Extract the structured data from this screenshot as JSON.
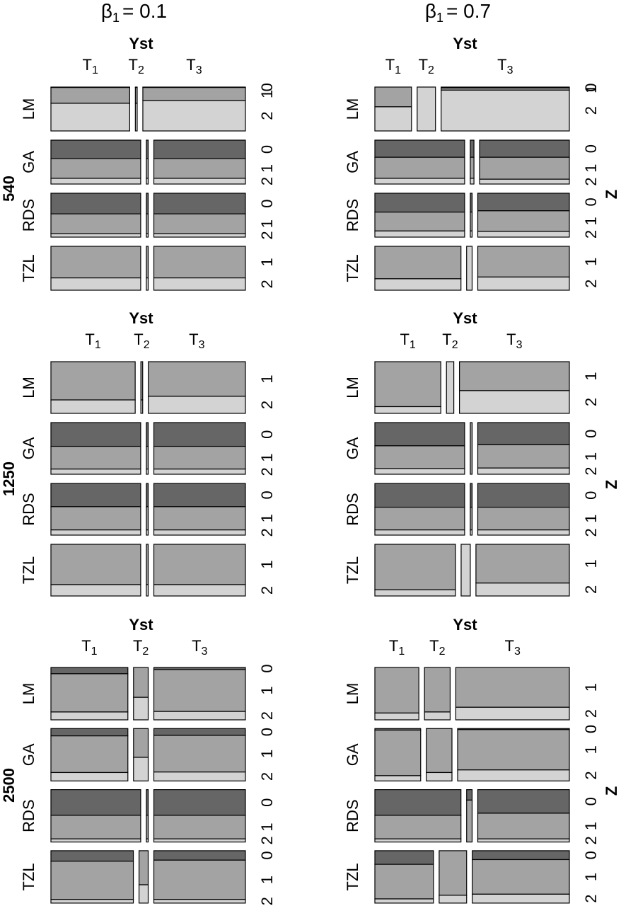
{
  "columns": [
    {
      "symbol": "β",
      "sub": "1",
      "value": "= 0.1"
    },
    {
      "symbol": "β",
      "sub": "1",
      "value": "= 0.7"
    }
  ],
  "sample_sizes": [
    "540",
    "1250",
    "2500"
  ],
  "y_title": "Yst",
  "z_title": "Z",
  "t_levels": [
    {
      "base": "T",
      "sub": "1"
    },
    {
      "base": "T",
      "sub": "2"
    },
    {
      "base": "T",
      "sub": "3"
    }
  ],
  "z_levels": [
    "0",
    "1",
    "2"
  ],
  "z_colors": [
    "#666666",
    "#a3a3a3",
    "#d3d3d3"
  ],
  "methods": [
    "LM",
    "GA",
    "RDS",
    "TZL"
  ],
  "panels": [
    [
      {
        "rows": [
          {
            "t": [
              43,
              1,
              56
            ],
            "z": [
              [
                1,
                36,
                63
              ],
              [
                1,
                36,
                63
              ],
              [
                1,
                30,
                69
              ]
            ]
          },
          {
            "t": [
              49,
              1,
              50
            ],
            "z": [
              [
                42,
                45,
                13
              ],
              [
                42,
                45,
                13
              ],
              [
                42,
                45,
                13
              ]
            ]
          },
          {
            "t": [
              49,
              1,
              50
            ],
            "z": [
              [
                47,
                45,
                8
              ],
              [
                47,
                45,
                8
              ],
              [
                47,
                45,
                8
              ]
            ]
          },
          {
            "t": [
              49,
              1,
              50
            ],
            "z": [
              [
                0,
                72,
                28
              ],
              [
                0,
                72,
                28
              ],
              [
                0,
                72,
                28
              ]
            ]
          }
        ]
      },
      {
        "rows": [
          {
            "t": [
              20,
              10,
              70
            ],
            "z": [
              [
                0,
                45,
                55
              ],
              [
                0,
                0,
                100
              ],
              [
                2,
                5,
                93
              ]
            ]
          },
          {
            "t": [
              49,
              2,
              49
            ],
            "z": [
              [
                39,
                48,
                13
              ],
              [
                39,
                48,
                13
              ],
              [
                39,
                50,
                11
              ]
            ]
          },
          {
            "t": [
              49,
              1,
              50
            ],
            "z": [
              [
                43,
                43,
                14
              ],
              [
                43,
                43,
                14
              ],
              [
                40,
                47,
                13
              ]
            ]
          },
          {
            "t": [
              47,
              3,
              50
            ],
            "z": [
              [
                0,
                74,
                26
              ],
              [
                0,
                0,
                100
              ],
              [
                0,
                70,
                30
              ]
            ]
          }
        ]
      }
    ],
    [
      {
        "rows": [
          {
            "t": [
              46,
              1,
              53
            ],
            "z": [
              [
                0,
                74,
                26
              ],
              [
                0,
                74,
                26
              ],
              [
                0,
                67,
                33
              ]
            ]
          },
          {
            "t": [
              49,
              1,
              50
            ],
            "z": [
              [
                46,
                44,
                10
              ],
              [
                46,
                44,
                10
              ],
              [
                46,
                44,
                10
              ]
            ]
          },
          {
            "t": [
              49,
              1,
              50
            ],
            "z": [
              [
                45,
                45,
                10
              ],
              [
                45,
                45,
                10
              ],
              [
                45,
                45,
                10
              ]
            ]
          },
          {
            "t": [
              49,
              1,
              50
            ],
            "z": [
              [
                0,
                78,
                22
              ],
              [
                0,
                78,
                22
              ],
              [
                0,
                78,
                22
              ]
            ]
          }
        ]
      },
      {
        "rows": [
          {
            "t": [
              36,
              4,
              60
            ],
            "z": [
              [
                0,
                87,
                13
              ],
              [
                0,
                0,
                100
              ],
              [
                0,
                56,
                44
              ]
            ]
          },
          {
            "t": [
              49,
              1,
              50
            ],
            "z": [
              [
                45,
                44,
                11
              ],
              [
                0,
                100,
                0
              ],
              [
                43,
                45,
                12
              ]
            ]
          },
          {
            "t": [
              49,
              1,
              50
            ],
            "z": [
              [
                46,
                44,
                10
              ],
              [
                46,
                44,
                10
              ],
              [
                46,
                44,
                10
              ]
            ]
          },
          {
            "t": [
              44,
              5,
              51
            ],
            "z": [
              [
                0,
                88,
                12
              ],
              [
                0,
                0,
                100
              ],
              [
                0,
                75,
                25
              ]
            ]
          }
        ]
      }
    ],
    [
      {
        "rows": [
          {
            "t": [
              42,
              8,
              50
            ],
            "z": [
              [
                12,
                73,
                15
              ],
              [
                0,
                57,
                43
              ],
              [
                4,
                80,
                16
              ]
            ]
          },
          {
            "t": [
              42,
              8,
              50
            ],
            "z": [
              [
                14,
                70,
                16
              ],
              [
                0,
                55,
                45
              ],
              [
                13,
                70,
                17
              ]
            ]
          },
          {
            "t": [
              49,
              1,
              50
            ],
            "z": [
              [
                49,
                45,
                6
              ],
              [
                49,
                45,
                6
              ],
              [
                49,
                45,
                6
              ]
            ]
          },
          {
            "t": [
              45,
              5,
              50
            ],
            "z": [
              [
                20,
                73,
                7
              ],
              [
                0,
                65,
                35
              ],
              [
                18,
                75,
                7
              ]
            ]
          }
        ]
      },
      {
        "rows": [
          {
            "t": [
              24,
              14,
              62
            ],
            "z": [
              [
                0,
                87,
                13
              ],
              [
                0,
                85,
                15
              ],
              [
                0,
                76,
                24
              ]
            ]
          },
          {
            "t": [
              25,
              14,
              61
            ],
            "z": [
              [
                3,
                87,
                10
              ],
              [
                0,
                84,
                16
              ],
              [
                2,
                77,
                21
              ]
            ]
          },
          {
            "t": [
              47,
              3,
              50
            ],
            "z": [
              [
                49,
                45,
                6
              ],
              [
                20,
                80,
                0
              ],
              [
                45,
                49,
                6
              ]
            ]
          },
          {
            "t": [
              32,
              15,
              53
            ],
            "z": [
              [
                26,
                66,
                8
              ],
              [
                0,
                85,
                15
              ],
              [
                17,
                66,
                17
              ]
            ]
          }
        ]
      }
    ]
  ]
}
